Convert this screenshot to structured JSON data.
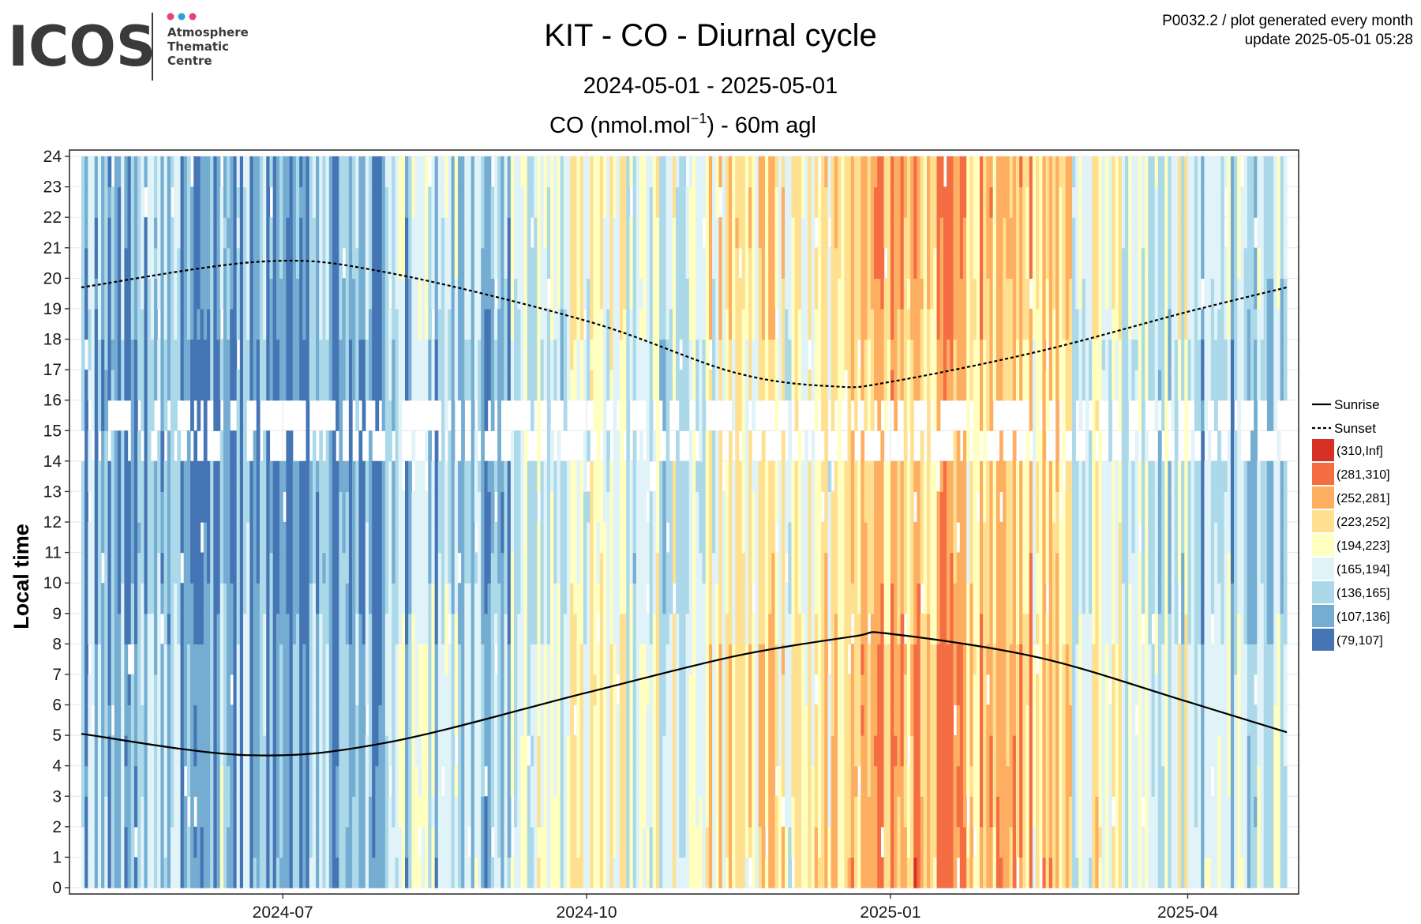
{
  "logo": {
    "word": "ICOS",
    "subtitle_lines": [
      "Atmosphere",
      "Thematic",
      "Centre"
    ],
    "dot_colors": [
      "#e8417a",
      "#29a3dd",
      "#e8417a"
    ],
    "text_color": "#3a3a3a"
  },
  "header": {
    "plot_id": "P0032.2 / plot generated every month",
    "update": "update  2025-05-01 05:28"
  },
  "chart_data": {
    "type": "heatmap",
    "title": "KIT - CO - Diurnal cycle",
    "subtitle": "2024-05-01 - 2025-05-01",
    "variable_label": "CO (nmol.mol",
    "variable_label_sup": "−1",
    "variable_label_suffix": ") - 60m agl",
    "ylabel": "Local time",
    "xlabel": "",
    "x_range": [
      "2024-05-01",
      "2025-05-01"
    ],
    "y_range": [
      0,
      24
    ],
    "x_ticks": [
      {
        "date": "2024-07-01",
        "label": "2024-07"
      },
      {
        "date": "2024-10-01",
        "label": "2024-10"
      },
      {
        "date": "2025-01-01",
        "label": "2025-01"
      },
      {
        "date": "2025-04-01",
        "label": "2025-04"
      }
    ],
    "y_ticks": [
      "0",
      "1",
      "2",
      "3",
      "4",
      "5",
      "6",
      "7",
      "8",
      "9",
      "10",
      "11",
      "12",
      "13",
      "14",
      "15",
      "16",
      "17",
      "18",
      "19",
      "20",
      "21",
      "22",
      "23",
      "24"
    ],
    "grid": true,
    "legend_position": "right",
    "legend_lines": [
      {
        "label": "Sunrise",
        "style": "solid"
      },
      {
        "label": "Sunset",
        "style": "dashed"
      }
    ],
    "color_bins": [
      {
        "label": "(310,Inf]",
        "color": "#d73027"
      },
      {
        "label": "(281,310]",
        "color": "#f46d43"
      },
      {
        "label": "(252,281]",
        "color": "#fdae61"
      },
      {
        "label": "(223,252]",
        "color": "#fee090"
      },
      {
        "label": "(194,223]",
        "color": "#ffffbf"
      },
      {
        "label": "(165,194]",
        "color": "#e0f3f8"
      },
      {
        "label": "(136,165]",
        "color": "#abd9e9"
      },
      {
        "label": "(107,136]",
        "color": "#74add1"
      },
      {
        "label": "(79,107]",
        "color": "#4575b4"
      }
    ],
    "heatmap_profile": {
      "description_of_values": "approximate daily CO level per period, as color bin index (0 = lowest bin (79,107], 8 = highest (310,Inf])",
      "periods": [
        {
          "from": "2024-05-01",
          "to": "2024-06-15",
          "typical_bin": 1.5
        },
        {
          "from": "2024-06-15",
          "to": "2024-08-01",
          "typical_bin": 0.9
        },
        {
          "from": "2024-08-01",
          "to": "2024-09-15",
          "typical_bin": 2.0
        },
        {
          "from": "2024-09-15",
          "to": "2024-11-01",
          "typical_bin": 3.2
        },
        {
          "from": "2024-11-01",
          "to": "2024-12-20",
          "typical_bin": 4.0
        },
        {
          "from": "2024-12-20",
          "to": "2025-01-25",
          "typical_bin": 5.6
        },
        {
          "from": "2025-01-25",
          "to": "2025-02-25",
          "typical_bin": 5.2
        },
        {
          "from": "2025-02-25",
          "to": "2025-04-01",
          "typical_bin": 3.4
        },
        {
          "from": "2025-04-01",
          "to": "2025-05-01",
          "typical_bin": 2.2
        }
      ],
      "missing_hours": [
        14,
        15
      ]
    },
    "sunrise": [
      {
        "date": "2024-05-01",
        "hour": 5.05
      },
      {
        "date": "2024-06-20",
        "hour": 4.35
      },
      {
        "date": "2024-08-01",
        "hour": 4.75
      },
      {
        "date": "2024-10-01",
        "hour": 6.4
      },
      {
        "date": "2024-11-15",
        "hour": 7.6
      },
      {
        "date": "2024-12-21",
        "hour": 8.25
      },
      {
        "date": "2025-01-01",
        "hour": 8.33
      },
      {
        "date": "2025-02-15",
        "hour": 7.55
      },
      {
        "date": "2025-04-01",
        "hour": 6.1
      },
      {
        "date": "2025-05-01",
        "hour": 5.1
      }
    ],
    "sunset": [
      {
        "date": "2024-05-01",
        "hour": 19.7
      },
      {
        "date": "2024-06-25",
        "hour": 20.55
      },
      {
        "date": "2024-08-01",
        "hour": 20.2
      },
      {
        "date": "2024-10-01",
        "hour": 18.6
      },
      {
        "date": "2024-11-15",
        "hour": 16.9
      },
      {
        "date": "2024-12-15",
        "hour": 16.45
      },
      {
        "date": "2025-01-01",
        "hour": 16.6
      },
      {
        "date": "2025-02-15",
        "hour": 17.6
      },
      {
        "date": "2025-04-01",
        "hour": 18.9
      },
      {
        "date": "2025-05-01",
        "hour": 19.7
      }
    ]
  }
}
